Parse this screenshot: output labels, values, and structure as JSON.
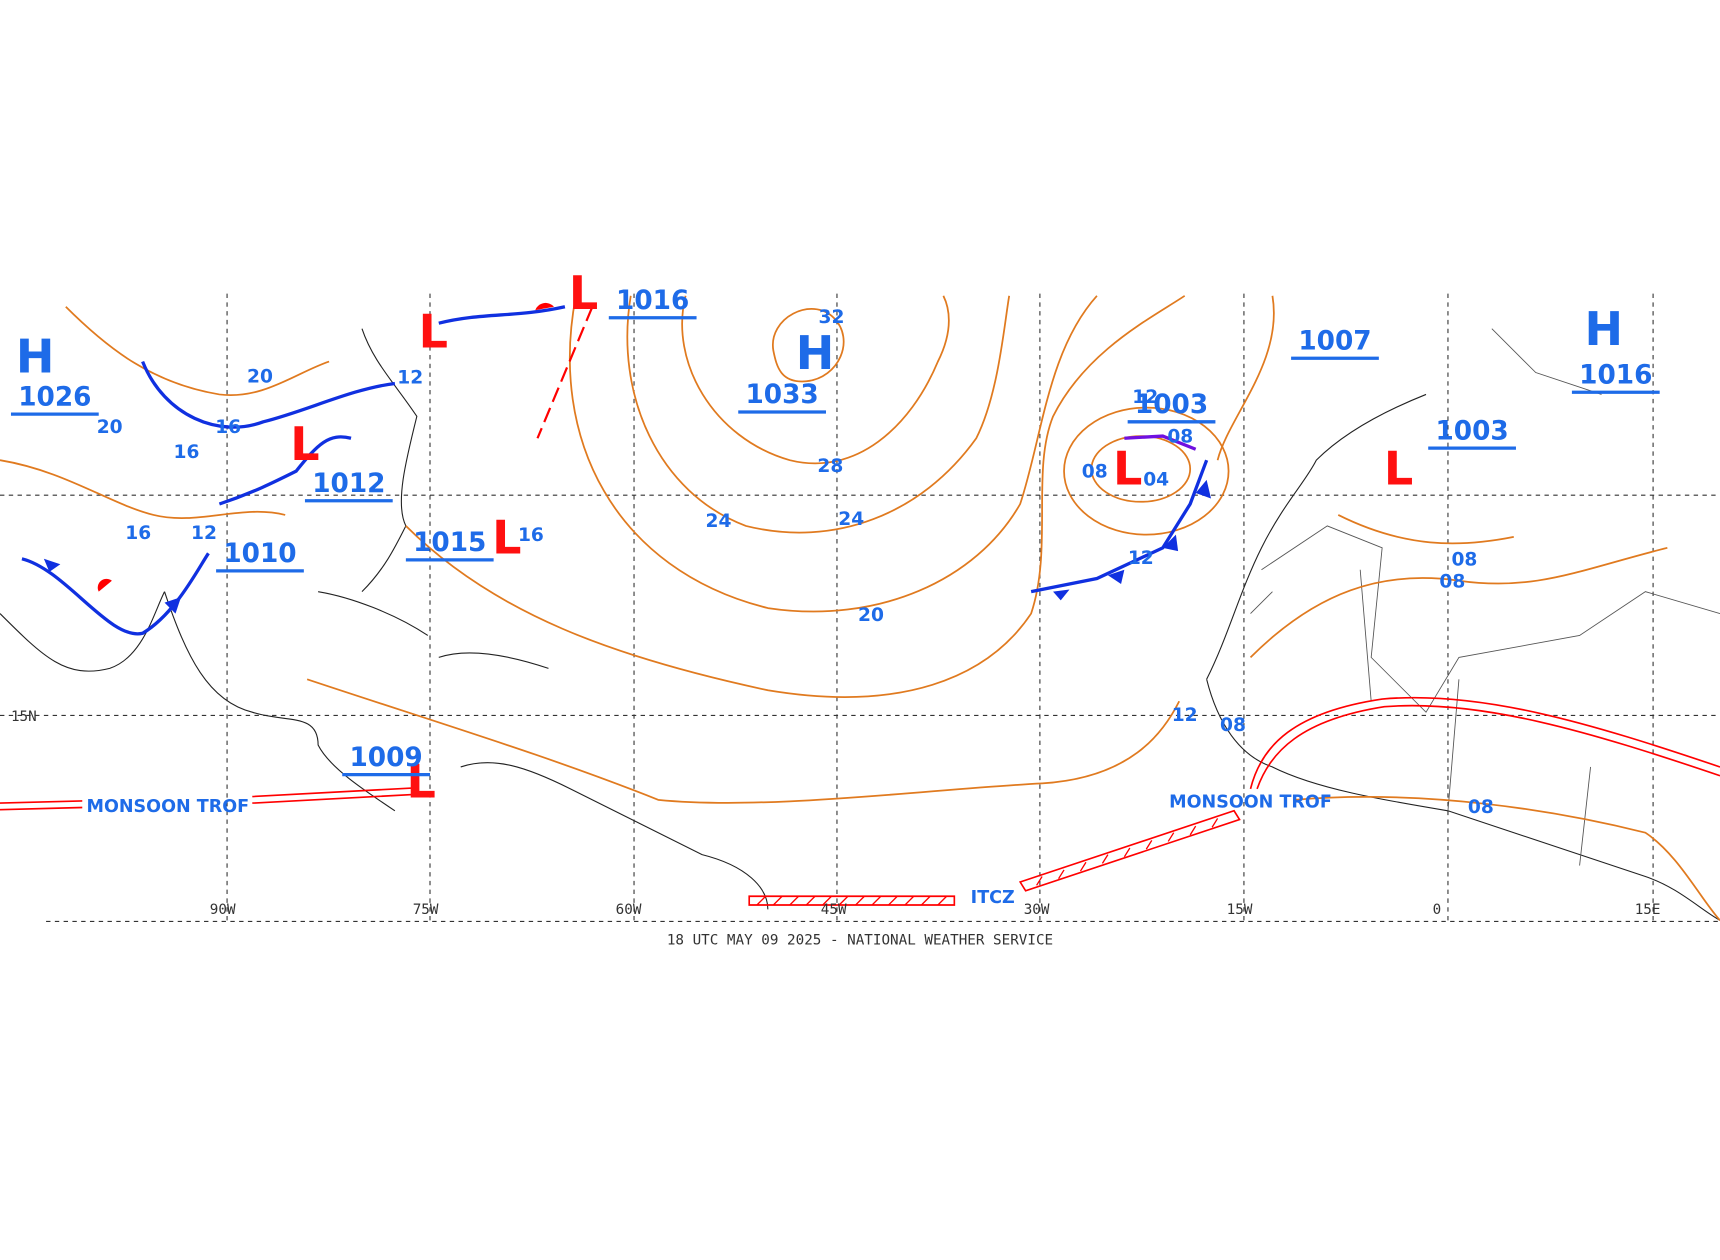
{
  "map": {
    "footer": "18 UTC MAY 09 2025 - NATIONAL WEATHER SERVICE",
    "lon_labels": [
      "90W",
      "75W",
      "60W",
      "45W",
      "30W",
      "15W",
      "0",
      "15E"
    ],
    "lat_labels": [
      "15N"
    ],
    "centers": [
      {
        "symbol": "H",
        "pressure": "1033"
      },
      {
        "symbol": "H",
        "pressure": "1026"
      },
      {
        "symbol": "H",
        "pressure": "1016"
      },
      {
        "symbol": "L",
        "pressure": "1012"
      },
      {
        "symbol": "L",
        "pressure": "1015"
      },
      {
        "symbol": "L",
        "pressure": "1009"
      },
      {
        "symbol": "L",
        "pressure": "1003"
      },
      {
        "symbol": "L",
        "pressure": "1003"
      },
      {
        "symbol": "L"
      },
      {
        "symbol": "L"
      }
    ],
    "pressure_labels": [
      "1007",
      "1010",
      "1016"
    ],
    "isobar_labels": [
      "32",
      "28",
      "24",
      "24",
      "20",
      "16",
      "12",
      "12",
      "08",
      "08",
      "04",
      "12",
      "08",
      "08",
      "08",
      "12",
      "16",
      "20",
      "20",
      "16",
      "12",
      "16",
      "08"
    ],
    "features": [
      "MONSOON TROF",
      "MONSOON TROF",
      "ITCZ"
    ]
  }
}
